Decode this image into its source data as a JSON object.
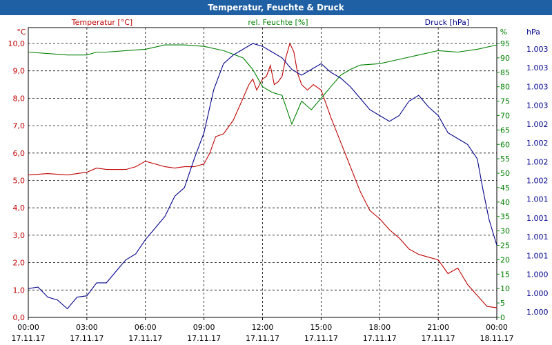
{
  "window": {
    "title": "Temperatur, Feuchte & Druck"
  },
  "chart_data": {
    "type": "line",
    "title": "Temperatur, Feuchte & Druck",
    "grid": true,
    "x_ticks": [
      {
        "time": "00:00",
        "date": "17.11.17"
      },
      {
        "time": "03:00",
        "date": "17.11.17"
      },
      {
        "time": "06:00",
        "date": "17.11.17"
      },
      {
        "time": "09:00",
        "date": "17.11.17"
      },
      {
        "time": "12:00",
        "date": "17.11.17"
      },
      {
        "time": "15:00",
        "date": "17.11.17"
      },
      {
        "time": "18:00",
        "date": "17.11.17"
      },
      {
        "time": "21:00",
        "date": "17.11.17"
      },
      {
        "time": "00:00",
        "date": "18.11.17"
      }
    ],
    "x_hours_range": [
      0,
      24
    ],
    "axes": {
      "temp": {
        "name": "Temperatur [°C]",
        "unit": "°C",
        "color": "#c00000",
        "range": [
          0,
          10
        ],
        "ticks": [
          "0,0",
          "1,0",
          "2,0",
          "3,0",
          "4,0",
          "5,0",
          "6,0",
          "7,0",
          "8,0",
          "9,0",
          "10,0"
        ]
      },
      "hum": {
        "name": "rel. Feuchte [%]",
        "unit": "%",
        "color": "#008000",
        "range": [
          0,
          95
        ],
        "ticks": [
          "0",
          "5",
          "10",
          "15",
          "20",
          "25",
          "30",
          "35",
          "40",
          "45",
          "50",
          "55",
          "60",
          "65",
          "70",
          "75",
          "80",
          "85",
          "90",
          "95"
        ]
      },
      "pres": {
        "name": "Druck [hPa]",
        "unit": "hPa",
        "color": "#00008b",
        "ticks": [
          "1.000",
          "1.000",
          "1.000",
          "1.001",
          "1.001",
          "1.001",
          "1.001",
          "1.002",
          "1.002",
          "1.002",
          "1.002",
          "1.003",
          "1.003",
          "1.003",
          "1.003"
        ]
      }
    },
    "series": [
      {
        "name": "Temperatur [°C]",
        "axis": "temp",
        "color": "#c00000",
        "x": [
          0,
          1,
          2,
          3,
          3.5,
          4,
          5,
          5.5,
          6,
          7,
          7.5,
          8,
          8.5,
          9,
          9.3,
          9.6,
          10,
          10.5,
          11,
          11.3,
          11.5,
          11.7,
          12,
          12.2,
          12.4,
          12.6,
          12.8,
          13,
          13.2,
          13.4,
          13.6,
          13.8,
          14,
          14.3,
          14.6,
          15,
          15.5,
          16,
          16.5,
          17,
          17.5,
          18,
          18.5,
          19,
          19.5,
          20,
          20.5,
          21,
          21.5,
          22,
          22.5,
          23,
          23.5,
          24
        ],
        "values": [
          5.2,
          5.25,
          5.2,
          5.3,
          5.45,
          5.4,
          5.4,
          5.5,
          5.7,
          5.5,
          5.45,
          5.5,
          5.5,
          5.6,
          6.0,
          6.6,
          6.7,
          7.2,
          8.0,
          8.5,
          8.7,
          8.3,
          8.7,
          8.8,
          9.2,
          8.5,
          8.6,
          8.8,
          9.5,
          10.0,
          9.7,
          8.9,
          8.5,
          8.3,
          8.5,
          8.3,
          7.3,
          6.4,
          5.5,
          4.6,
          3.9,
          3.6,
          3.2,
          2.9,
          2.5,
          2.3,
          2.2,
          2.1,
          1.6,
          1.8,
          1.2,
          0.8,
          0.4,
          0.35
        ]
      },
      {
        "name": "rel. Feuchte [%]",
        "axis": "hum",
        "color": "#008000",
        "x": [
          0,
          2,
          3,
          3.5,
          4,
          5,
          6,
          7,
          8,
          9,
          10,
          11,
          11.5,
          12,
          12.5,
          13,
          13.5,
          14,
          14.5,
          15,
          15.5,
          16,
          16.5,
          17,
          18,
          19,
          20,
          21,
          22,
          23,
          24
        ],
        "values": [
          92,
          91,
          91,
          92,
          92,
          92.5,
          93,
          94.5,
          94.5,
          94,
          92.5,
          90,
          86,
          80,
          78,
          77,
          67,
          75,
          72,
          76,
          80,
          84,
          86,
          87.5,
          88,
          89.5,
          91,
          92.5,
          92,
          93,
          94.5
        ]
      },
      {
        "name": "Druck [hPa]",
        "axis": "hum",
        "color": "#00008b",
        "x": [
          0,
          0.5,
          1,
          1.5,
          2,
          2.5,
          3,
          3.5,
          4,
          4.5,
          5,
          5.5,
          6,
          6.5,
          7,
          7.5,
          8,
          8.5,
          9,
          9.5,
          10,
          10.5,
          11,
          11.5,
          12,
          12.5,
          13,
          13.5,
          14,
          14.5,
          15,
          15.5,
          16,
          16.5,
          17,
          17.5,
          18,
          18.5,
          19,
          19.5,
          20,
          20.5,
          21,
          21.5,
          22,
          22.5,
          23,
          23.3,
          23.6,
          24
        ],
        "values": [
          10,
          10.5,
          7,
          6,
          3,
          7,
          7.5,
          12,
          12,
          16,
          20,
          22,
          27,
          31,
          35,
          42,
          45,
          55,
          64,
          79,
          88,
          91,
          93,
          95,
          94,
          92,
          90,
          86,
          84,
          86,
          88,
          85,
          83,
          80,
          76,
          72,
          70,
          68,
          70,
          75,
          77,
          73,
          70,
          64,
          62,
          60,
          55,
          44,
          34,
          25
        ]
      }
    ]
  }
}
